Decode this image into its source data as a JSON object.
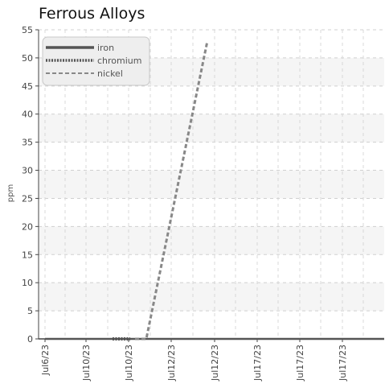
{
  "chart_data": {
    "type": "line",
    "title": "Ferrous Alloys",
    "ylabel": "ppm",
    "xlabel": "",
    "ylim": [
      0,
      55
    ],
    "yticks": [
      0,
      5,
      10,
      15,
      20,
      25,
      30,
      35,
      40,
      45,
      50,
      55
    ],
    "x_ticks": [
      "Jul6/23",
      "Jul10/23",
      "Jul10/23",
      "Jul12/23",
      "Jul12/23",
      "Jul17/23",
      "Jul17/23",
      "Jul17/23"
    ],
    "grid": true,
    "legend_position": "top-left",
    "series": [
      {
        "name": "iron",
        "color": "#555555",
        "style": "solid",
        "points": [
          {
            "x": "Jul6/23",
            "y": 0
          },
          {
            "x": "Jul17/23",
            "y": 0
          }
        ]
      },
      {
        "name": "chromium",
        "color": "#555555",
        "style": "dotted",
        "points": [
          {
            "x": "Jul10/23",
            "y": 0
          }
        ]
      },
      {
        "name": "nickel",
        "color": "#888888",
        "style": "dashed",
        "points": [
          {
            "x": "Jul10/23",
            "y": 0
          },
          {
            "x": "Jul12/23",
            "y": 53
          }
        ]
      }
    ]
  }
}
